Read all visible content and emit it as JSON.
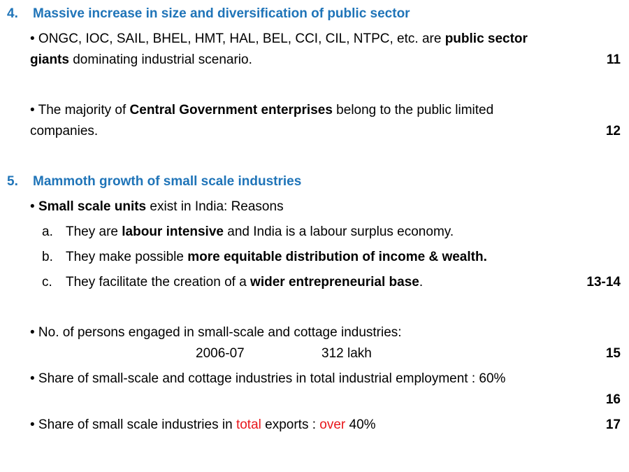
{
  "sections": [
    {
      "number": "4.",
      "title": "Massive increase in size and diversification of public sector",
      "points": [
        {
          "lines": [
            [
              {
                "text": "• ONGC, IOC, SAIL, BHEL, HMT, HAL, BEL, CCI, CIL, NTPC, etc. are "
              },
              {
                "text": "public sector",
                "bold": true
              }
            ],
            [
              {
                "text": "giants",
                "bold": true
              },
              {
                "text": " dominating industrial scenario."
              }
            ]
          ],
          "ref": "11"
        },
        {
          "lines": [
            [
              {
                "text": "• The majority of "
              },
              {
                "text": "Central Government enterprises",
                "bold": true
              },
              {
                "text": " belong to the public limited"
              }
            ],
            [
              {
                "text": "companies."
              }
            ]
          ],
          "ref": "12"
        }
      ]
    },
    {
      "number": "5.",
      "title": "Mammoth growth of small scale industries",
      "points": [
        {
          "lines": [
            [
              {
                "text": "• "
              },
              {
                "text": "Small scale units",
                "bold": true
              },
              {
                "text": " exist in India: Reasons"
              }
            ]
          ],
          "subpoints": [
            {
              "marker": "a.",
              "runs": [
                {
                  "text": "They are "
                },
                {
                  "text": "labour intensive",
                  "bold": true
                },
                {
                  "text": " and India is a labour surplus economy."
                }
              ]
            },
            {
              "marker": "b.",
              "runs": [
                {
                  "text": "They make possible "
                },
                {
                  "text": "more equitable distribution of income &  wealth.",
                  "bold": true
                }
              ]
            },
            {
              "marker": "c.",
              "runs": [
                {
                  "text": "They facilitate the creation of a "
                },
                {
                  "text": "wider entrepreneurial base",
                  "bold": true
                },
                {
                  "text": "."
                }
              ]
            }
          ],
          "ref": "13-14"
        },
        {
          "lines": [
            [
              {
                "text": "• No. of persons engaged in small-scale and cottage industries:"
              }
            ]
          ],
          "table": {
            "year": "2006-07",
            "value": "312 lakh"
          },
          "ref": "15"
        },
        {
          "lines": [
            [
              {
                "text": "• Share of small-scale and cottage industries in total industrial employment : 60%"
              }
            ]
          ],
          "ref": "16"
        },
        {
          "lines": [
            [
              {
                "text": "• Share of small scale industries in "
              },
              {
                "text": "total",
                "color": "#e8161b"
              },
              {
                "text": " exports    :  "
              },
              {
                "text": "over",
                "color": "#e8161b"
              },
              {
                "text": " 40%"
              }
            ]
          ],
          "ref": "17"
        }
      ]
    }
  ]
}
